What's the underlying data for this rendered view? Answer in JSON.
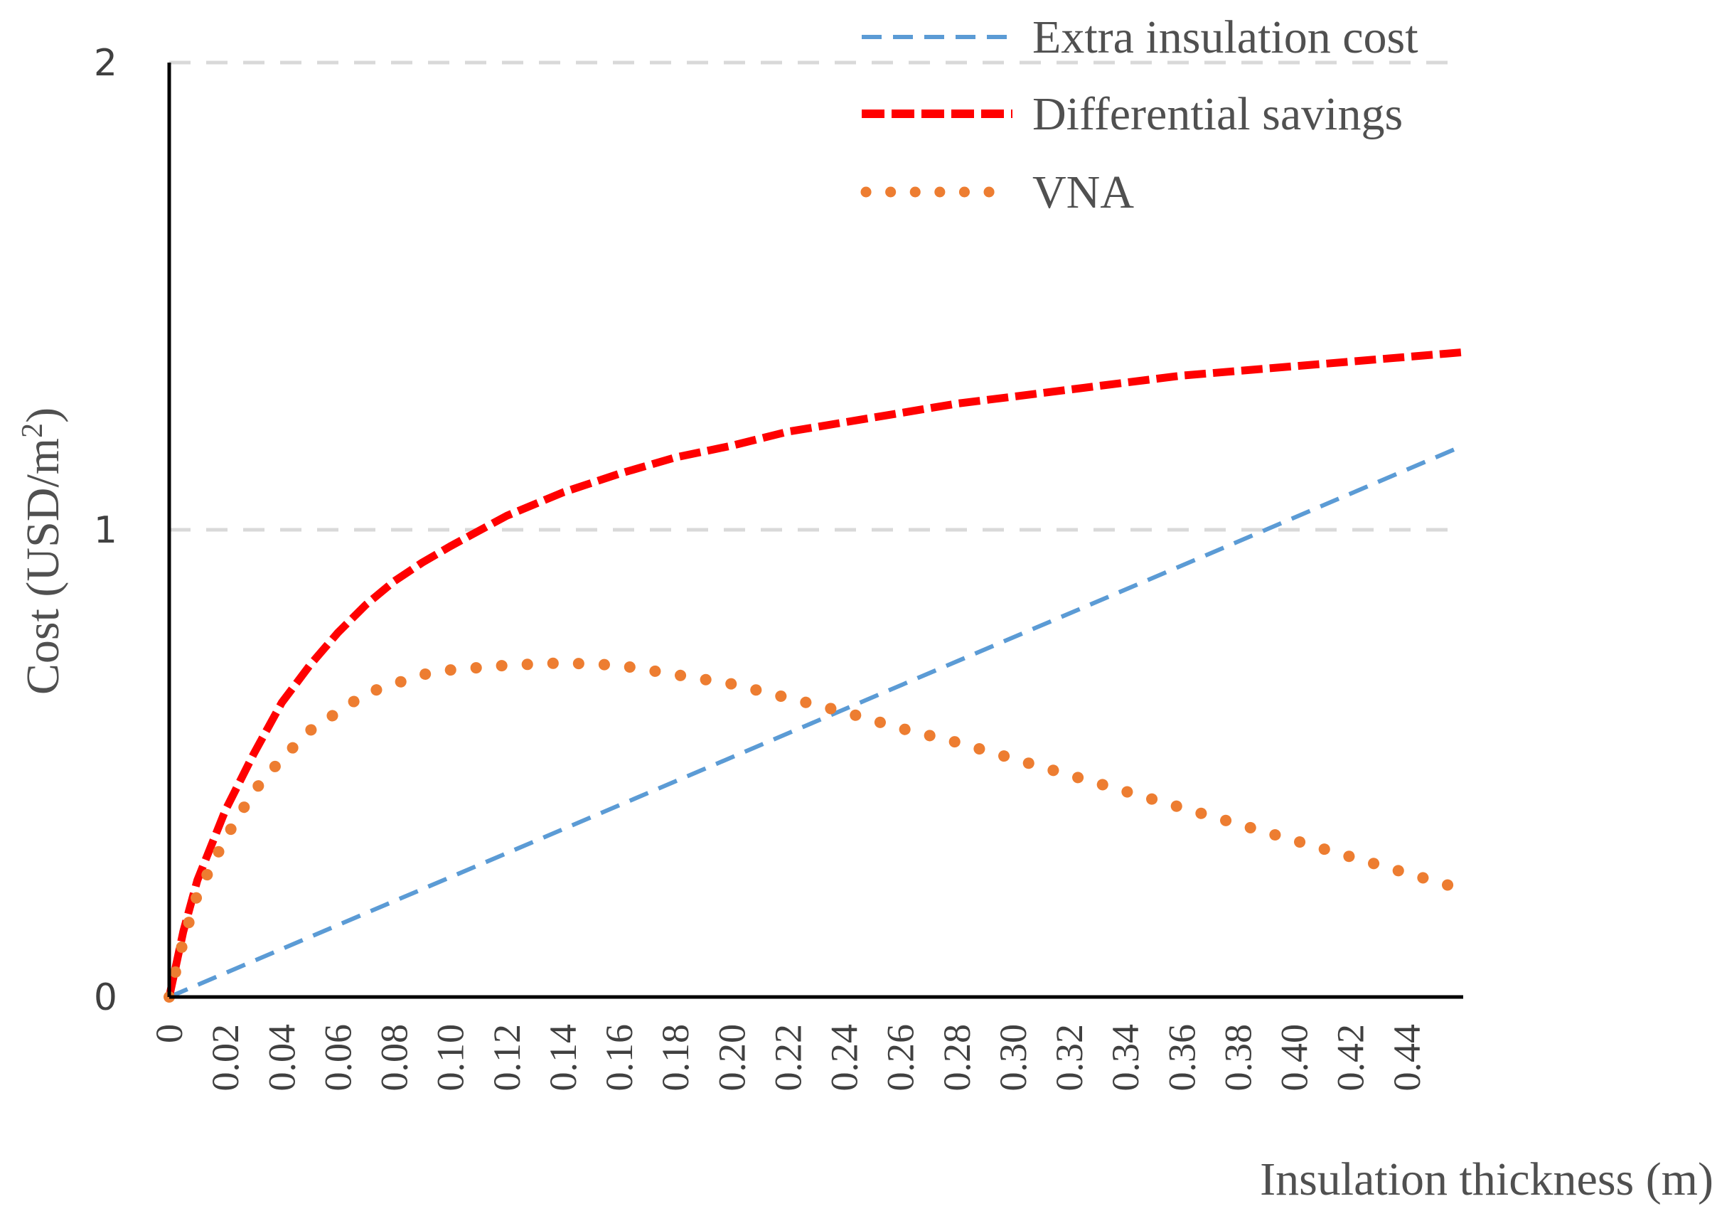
{
  "chart_data": {
    "type": "line",
    "title": "",
    "xlabel": "Insulation thickness (m)",
    "ylabel_main": "Cost  (USD/m",
    "ylabel_sup": "2",
    "ylabel_close": ")",
    "xlim": [
      0,
      0.46
    ],
    "ylim": [
      0,
      2
    ],
    "y_ticks": [
      {
        "value": 0,
        "label": "0"
      },
      {
        "value": 1,
        "label": "1"
      },
      {
        "value": 2,
        "label": "2"
      }
    ],
    "x_ticks": [
      "0",
      "0.02",
      "0.04",
      "0.06",
      "0.08",
      "0.10",
      "0.12",
      "0.14",
      "0.16",
      "0.18",
      "0.20",
      "0.22",
      "0.24",
      "0.26",
      "0.28",
      "0.30",
      "0.32",
      "0.34",
      "0.36",
      "0.38",
      "0.40",
      "0.42",
      "0.44"
    ],
    "grid": "horizontal dashed",
    "legend_position": "top-right",
    "colors": {
      "extra": "#5b9bd5",
      "savings": "#ff0000",
      "vna": "#ed7d31",
      "grid": "#d9d9d9",
      "axis": "#000000"
    },
    "series": [
      {
        "name": "Extra insulation cost",
        "style": "dashed",
        "x": [
          0,
          0.46
        ],
        "y": [
          0,
          1.18
        ]
      },
      {
        "name": "Differential savings",
        "style": "dashed-bold",
        "x": [
          0,
          0.005,
          0.01,
          0.02,
          0.03,
          0.04,
          0.05,
          0.06,
          0.07,
          0.08,
          0.09,
          0.1,
          0.12,
          0.14,
          0.16,
          0.18,
          0.2,
          0.22,
          0.24,
          0.26,
          0.28,
          0.3,
          0.32,
          0.34,
          0.36,
          0.38,
          0.4,
          0.42,
          0.44,
          0.46
        ],
        "y": [
          0,
          0.14,
          0.25,
          0.4,
          0.52,
          0.63,
          0.71,
          0.78,
          0.84,
          0.89,
          0.93,
          0.965,
          1.03,
          1.08,
          1.12,
          1.155,
          1.18,
          1.21,
          1.23,
          1.25,
          1.27,
          1.285,
          1.3,
          1.315,
          1.33,
          1.34,
          1.35,
          1.36,
          1.37,
          1.38
        ]
      },
      {
        "name": "VNA",
        "style": "dotted",
        "x": [
          0,
          0.005,
          0.01,
          0.02,
          0.03,
          0.04,
          0.05,
          0.06,
          0.07,
          0.08,
          0.09,
          0.1,
          0.12,
          0.14,
          0.16,
          0.18,
          0.2,
          0.22,
          0.24,
          0.26,
          0.28,
          0.3,
          0.32,
          0.34,
          0.36,
          0.38,
          0.4,
          0.42,
          0.44,
          0.46
        ],
        "y": [
          0,
          0.12,
          0.22,
          0.34,
          0.44,
          0.51,
          0.57,
          0.61,
          0.65,
          0.67,
          0.69,
          0.7,
          0.71,
          0.715,
          0.71,
          0.69,
          0.67,
          0.64,
          0.61,
          0.575,
          0.545,
          0.51,
          0.475,
          0.44,
          0.405,
          0.37,
          0.335,
          0.3,
          0.265,
          0.23
        ]
      }
    ]
  }
}
